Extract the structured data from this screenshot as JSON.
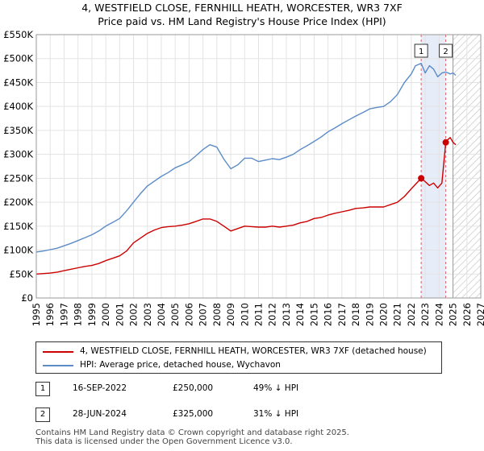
{
  "chart_data": {
    "type": "line",
    "title": "4, WESTFIELD CLOSE, FERNHILL HEATH, WORCESTER, WR3 7XF",
    "subtitle": "Price paid vs. HM Land Registry's House Price Index (HPI)",
    "ylim": [
      0,
      550000
    ],
    "xlim": [
      1995,
      2027
    ],
    "y_ticks": [
      0,
      50000,
      100000,
      150000,
      200000,
      250000,
      300000,
      350000,
      400000,
      450000,
      500000,
      550000
    ],
    "y_tick_labels": [
      "£0",
      "£50K",
      "£100K",
      "£150K",
      "£200K",
      "£250K",
      "£300K",
      "£350K",
      "£400K",
      "£450K",
      "£500K",
      "£550K"
    ],
    "x_ticks": [
      "1995",
      "1996",
      "1997",
      "1998",
      "1999",
      "2000",
      "2001",
      "2002",
      "2003",
      "2004",
      "2005",
      "2006",
      "2007",
      "2008",
      "2009",
      "2010",
      "2011",
      "2012",
      "2013",
      "2014",
      "2015",
      "2016",
      "2017",
      "2018",
      "2019",
      "2020",
      "2021",
      "2022",
      "2023",
      "2024",
      "2025",
      "2026",
      "2027"
    ],
    "grid": true,
    "forecast_from": 2025.0,
    "series": [
      {
        "name": "4, WESTFIELD CLOSE, FERNHILL HEATH, WORCESTER, WR3 7XF (detached house)",
        "color": "#cc0000",
        "x": [
          1995.0,
          1995.5,
          1996.0,
          1996.5,
          1997.0,
          1997.5,
          1998.0,
          1998.5,
          1999.0,
          1999.5,
          2000.0,
          2000.5,
          2001.0,
          2001.5,
          2002.0,
          2002.5,
          2003.0,
          2003.5,
          2004.0,
          2004.5,
          2005.0,
          2005.5,
          2006.0,
          2006.5,
          2007.0,
          2007.5,
          2008.0,
          2008.5,
          2009.0,
          2009.5,
          2010.0,
          2010.5,
          2011.0,
          2011.5,
          2012.0,
          2012.5,
          2013.0,
          2013.5,
          2014.0,
          2014.5,
          2015.0,
          2015.5,
          2016.0,
          2016.5,
          2017.0,
          2017.5,
          2018.0,
          2018.5,
          2019.0,
          2019.5,
          2020.0,
          2020.5,
          2021.0,
          2021.5,
          2022.0,
          2022.71,
          2023.0,
          2023.3,
          2023.6,
          2023.9,
          2024.2,
          2024.48,
          2024.6,
          2024.8,
          2025.0,
          2025.2
        ],
        "y": [
          50000,
          51000,
          52000,
          54000,
          57000,
          60000,
          63000,
          66000,
          68000,
          72000,
          78000,
          83000,
          88000,
          98000,
          115000,
          125000,
          135000,
          142000,
          147000,
          149000,
          150000,
          152000,
          155000,
          160000,
          165000,
          165000,
          160000,
          150000,
          140000,
          145000,
          150000,
          149000,
          148000,
          148000,
          150000,
          148000,
          150000,
          152000,
          157000,
          160000,
          166000,
          168000,
          173000,
          177000,
          180000,
          183000,
          187000,
          188000,
          190000,
          190000,
          190000,
          195000,
          200000,
          212000,
          228000,
          250000,
          243000,
          235000,
          240000,
          230000,
          240000,
          325000,
          330000,
          335000,
          325000,
          320000
        ]
      },
      {
        "name": "HPI: Average price, detached house, Wychavon",
        "color": "#5b8cc8",
        "x": [
          1995.0,
          1995.5,
          1996.0,
          1996.5,
          1997.0,
          1997.5,
          1998.0,
          1998.5,
          1999.0,
          1999.5,
          2000.0,
          2000.5,
          2001.0,
          2001.5,
          2002.0,
          2002.5,
          2003.0,
          2003.5,
          2004.0,
          2004.5,
          2005.0,
          2005.5,
          2006.0,
          2006.5,
          2007.0,
          2007.5,
          2008.0,
          2008.5,
          2009.0,
          2009.5,
          2010.0,
          2010.5,
          2011.0,
          2011.5,
          2012.0,
          2012.5,
          2013.0,
          2013.5,
          2014.0,
          2014.5,
          2015.0,
          2015.5,
          2016.0,
          2016.5,
          2017.0,
          2017.5,
          2018.0,
          2018.5,
          2019.0,
          2019.5,
          2020.0,
          2020.5,
          2021.0,
          2021.5,
          2022.0,
          2022.3,
          2022.71,
          2023.0,
          2023.3,
          2023.6,
          2023.9,
          2024.2,
          2024.48,
          2024.8,
          2025.0,
          2025.2
        ],
        "y": [
          96000,
          98000,
          101000,
          104000,
          109000,
          114000,
          120000,
          126000,
          132000,
          140000,
          150000,
          158000,
          166000,
          182000,
          200000,
          218000,
          234000,
          244000,
          254000,
          262000,
          272000,
          278000,
          285000,
          297000,
          310000,
          320000,
          315000,
          290000,
          270000,
          278000,
          292000,
          292000,
          285000,
          288000,
          291000,
          289000,
          294000,
          300000,
          310000,
          318000,
          327000,
          336000,
          347000,
          355000,
          364000,
          372000,
          380000,
          387000,
          395000,
          398000,
          400000,
          410000,
          425000,
          450000,
          468000,
          485000,
          490000,
          470000,
          485000,
          478000,
          462000,
          470000,
          472000,
          468000,
          470000,
          465000
        ]
      }
    ],
    "annotations": [
      {
        "label": "1",
        "x": 2022.71,
        "y": 250000
      },
      {
        "label": "2",
        "x": 2024.48,
        "y": 325000
      }
    ],
    "legend_position": "bottom"
  },
  "sales": [
    {
      "num": "1",
      "date": "16-SEP-2022",
      "price": "£250,000",
      "pct": "49% ↓ HPI"
    },
    {
      "num": "2",
      "date": "28-JUN-2024",
      "price": "£325,000",
      "pct": "31% ↓ HPI"
    }
  ],
  "footer": {
    "line1": "Contains HM Land Registry data © Crown copyright and database right 2025.",
    "line2": "This data is licensed under the Open Government Licence v3.0."
  }
}
